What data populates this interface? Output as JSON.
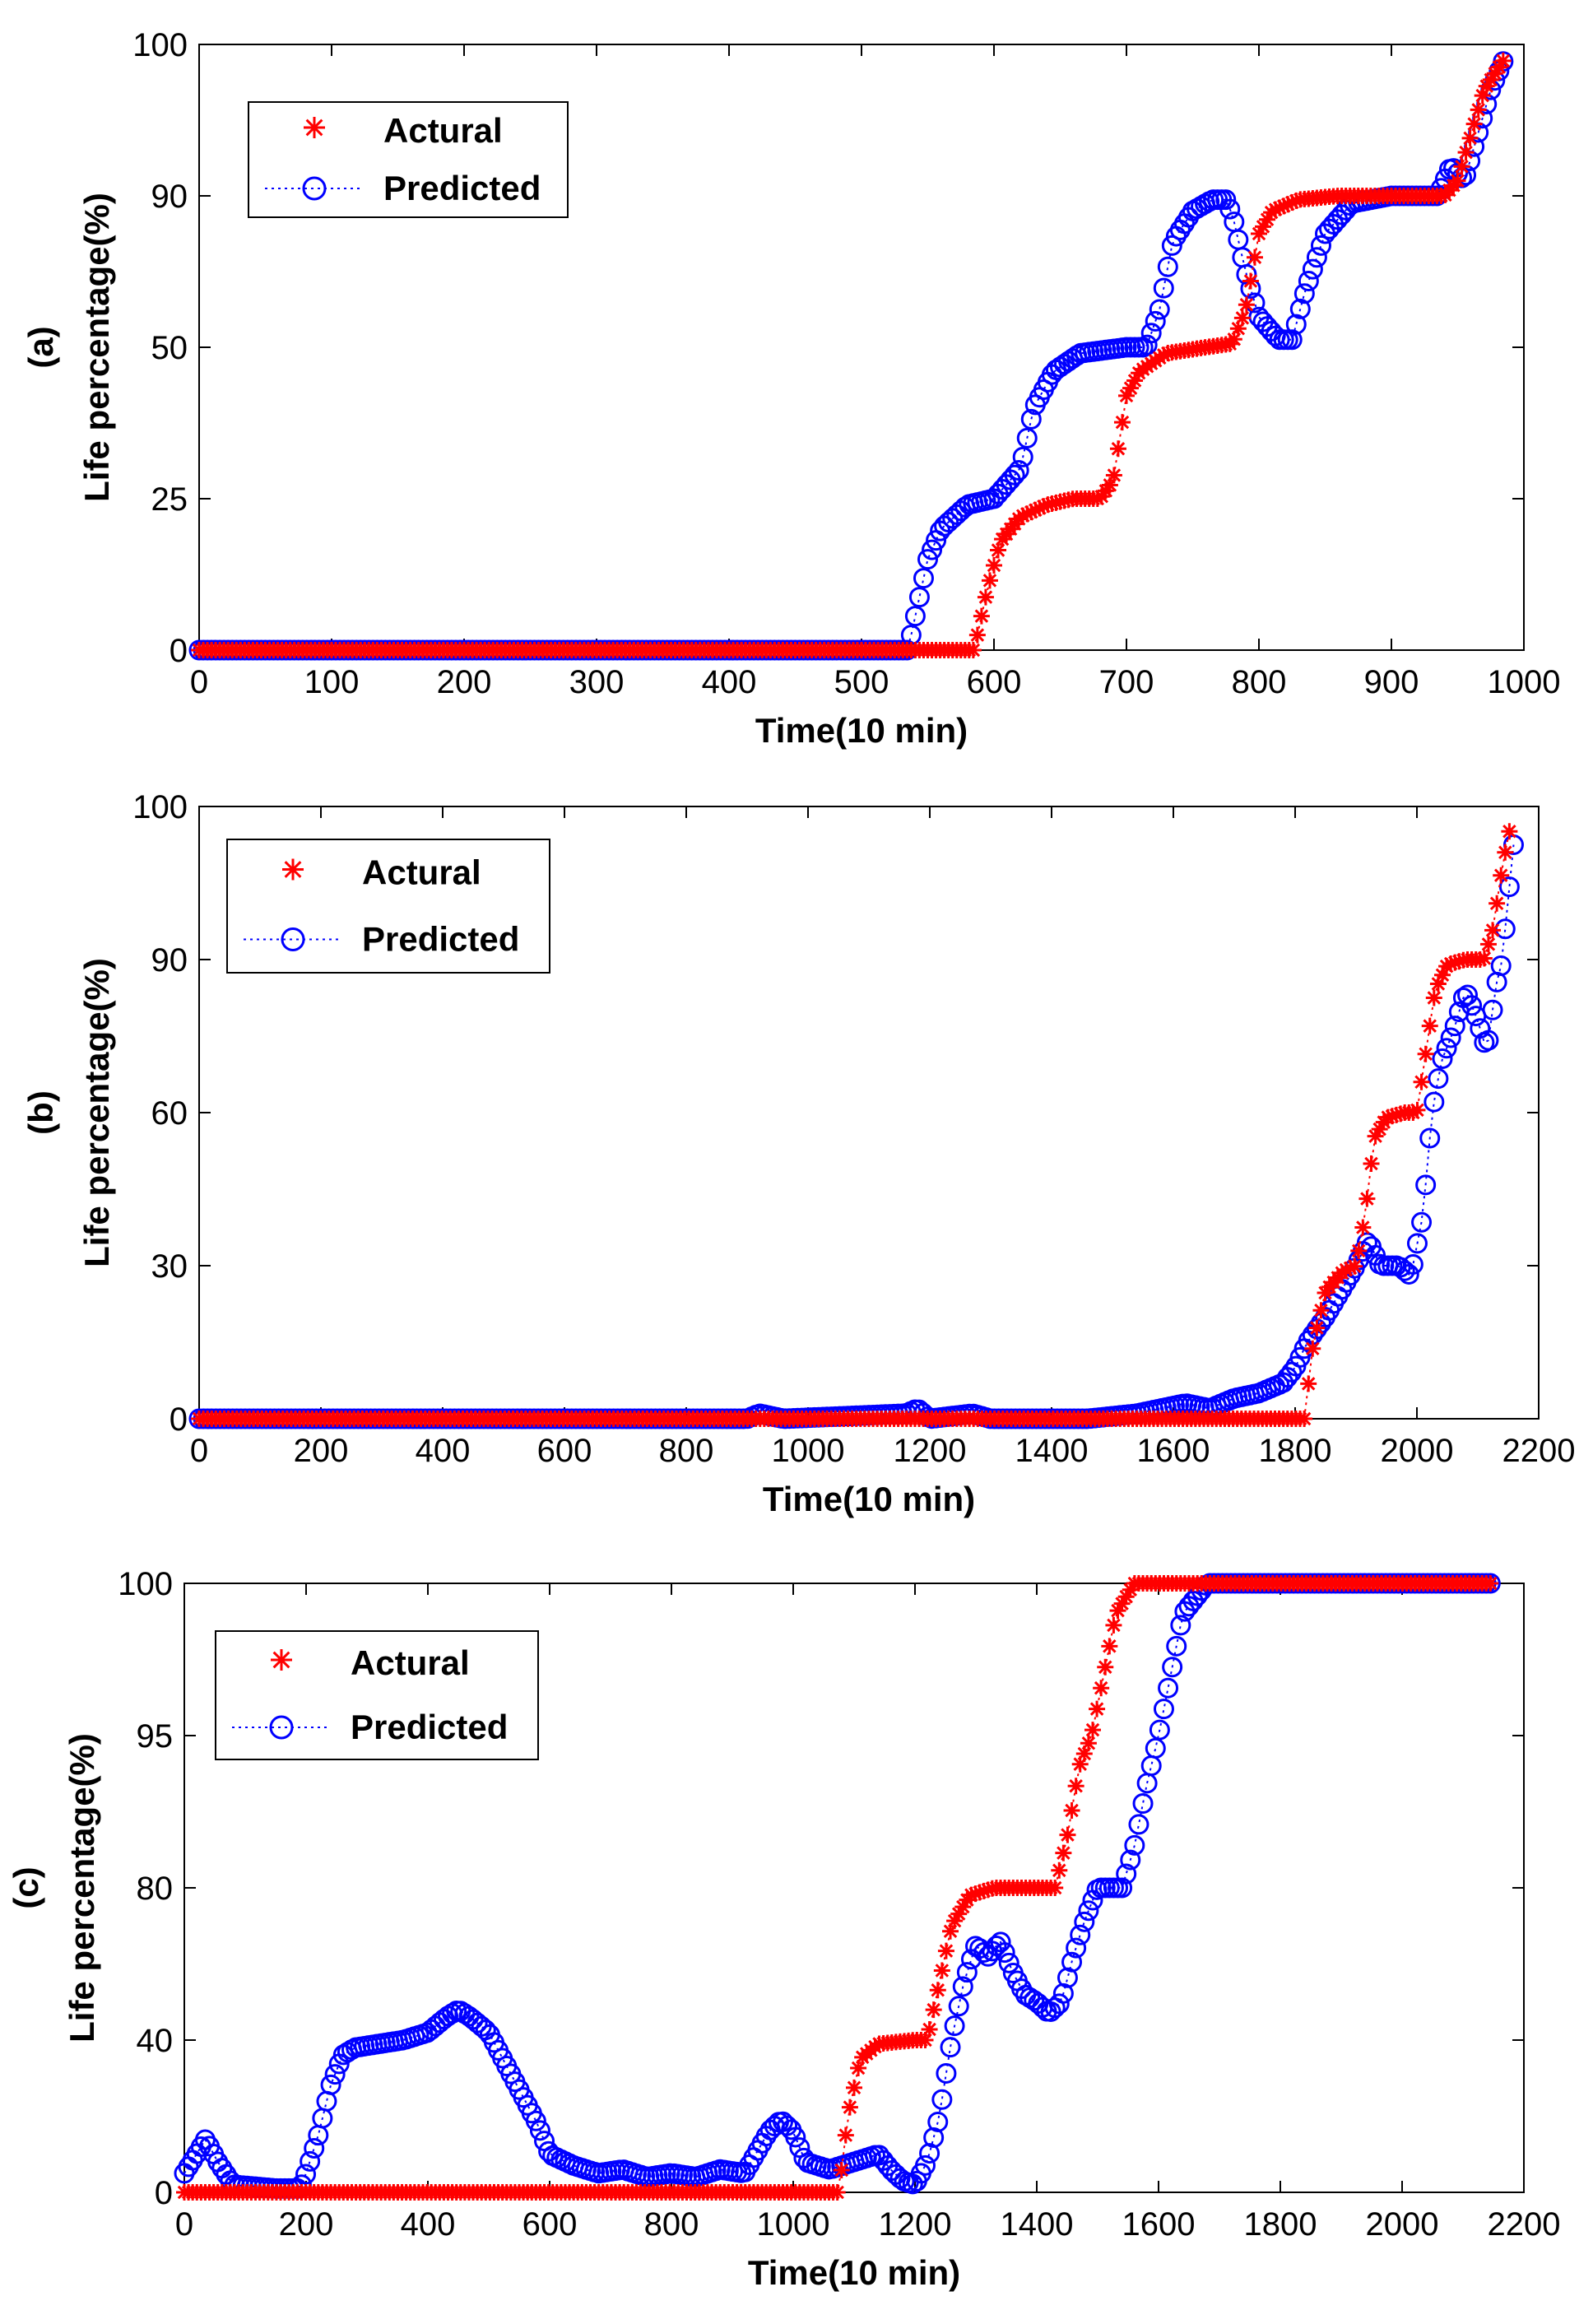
{
  "chart_data": [
    {
      "type": "scatter",
      "panel_label": "(a)",
      "xlabel": "Time(10 min)",
      "ylabel": "Life percentage(%)",
      "xlim": [
        0,
        1000
      ],
      "xticks": [
        0,
        100,
        200,
        300,
        400,
        500,
        600,
        700,
        800,
        900,
        1000
      ],
      "ytick_labels": [
        "0",
        "25",
        "50",
        "90",
        "100"
      ],
      "ytick_values": [
        0,
        25,
        50,
        90,
        100
      ],
      "legend": {
        "position": "top-left",
        "entries": [
          "Actural",
          "Predicted"
        ]
      },
      "series": [
        {
          "name": "Actural",
          "marker": "asterisk",
          "color": "#ff0000",
          "points": [
            [
              0,
              0
            ],
            [
              570,
              0
            ],
            [
              585,
              0
            ],
            [
              595,
              10
            ],
            [
              605,
              18
            ],
            [
              620,
              22
            ],
            [
              640,
              24
            ],
            [
              660,
              25
            ],
            [
              680,
              25
            ],
            [
              690,
              28
            ],
            [
              700,
              42
            ],
            [
              710,
              46
            ],
            [
              730,
              49
            ],
            [
              760,
              50
            ],
            [
              780,
              51
            ],
            [
              790,
              60
            ],
            [
              800,
              80
            ],
            [
              810,
              86
            ],
            [
              830,
              89
            ],
            [
              860,
              90
            ],
            [
              900,
              90
            ],
            [
              940,
              90
            ],
            [
              950,
              91
            ],
            [
              960,
              94
            ],
            [
              970,
              97
            ],
            [
              985,
              99
            ]
          ]
        },
        {
          "name": "Predicted",
          "marker": "circle",
          "color": "#0000ff",
          "points": [
            [
              0,
              0
            ],
            [
              520,
              0
            ],
            [
              535,
              0
            ],
            [
              540,
              5
            ],
            [
              550,
              15
            ],
            [
              560,
              20
            ],
            [
              580,
              24
            ],
            [
              600,
              25
            ],
            [
              620,
              30
            ],
            [
              630,
              40
            ],
            [
              645,
              46
            ],
            [
              665,
              49
            ],
            [
              700,
              50
            ],
            [
              715,
              50
            ],
            [
              725,
              60
            ],
            [
              735,
              78
            ],
            [
              750,
              86
            ],
            [
              765,
              89
            ],
            [
              775,
              89
            ],
            [
              780,
              85
            ],
            [
              790,
              70
            ],
            [
              800,
              58
            ],
            [
              815,
              52
            ],
            [
              825,
              52
            ],
            [
              835,
              65
            ],
            [
              850,
              80
            ],
            [
              870,
              88
            ],
            [
              900,
              90
            ],
            [
              935,
              90
            ],
            [
              945,
              92
            ],
            [
              955,
              91
            ],
            [
              965,
              94
            ],
            [
              975,
              97
            ],
            [
              985,
              99
            ]
          ]
        }
      ]
    },
    {
      "type": "scatter",
      "panel_label": "(b)",
      "xlabel": "Time(10 min)",
      "ylabel": "Life percentage(%)",
      "xlim": [
        0,
        2200
      ],
      "xticks": [
        0,
        200,
        400,
        600,
        800,
        1000,
        1200,
        1400,
        1600,
        1800,
        2000,
        2200
      ],
      "ytick_labels": [
        "0",
        "30",
        "60",
        "90",
        "100"
      ],
      "ytick_values": [
        0,
        30,
        60,
        90,
        100
      ],
      "legend": {
        "position": "top-left",
        "entries": [
          "Actural",
          "Predicted"
        ]
      },
      "series": [
        {
          "name": "Actural",
          "marker": "asterisk",
          "color": "#ff0000",
          "points": [
            [
              0,
              0
            ],
            [
              1780,
              0
            ],
            [
              1815,
              0
            ],
            [
              1830,
              15
            ],
            [
              1850,
              25
            ],
            [
              1880,
              29
            ],
            [
              1900,
              30
            ],
            [
              1915,
              40
            ],
            [
              1930,
              55
            ],
            [
              1950,
              59
            ],
            [
              1980,
              60
            ],
            [
              2000,
              60
            ],
            [
              2015,
              72
            ],
            [
              2030,
              84
            ],
            [
              2050,
              89
            ],
            [
              2080,
              90
            ],
            [
              2110,
              90
            ],
            [
              2125,
              92
            ],
            [
              2140,
              96
            ],
            [
              2155,
              99
            ]
          ]
        },
        {
          "name": "Predicted",
          "marker": "circle",
          "color": "#0000ff",
          "points": [
            [
              0,
              0
            ],
            [
              900,
              0
            ],
            [
              920,
              1
            ],
            [
              960,
              0
            ],
            [
              1160,
              1
            ],
            [
              1180,
              2
            ],
            [
              1200,
              0
            ],
            [
              1270,
              1
            ],
            [
              1300,
              0
            ],
            [
              1460,
              0
            ],
            [
              1540,
              1
            ],
            [
              1580,
              2
            ],
            [
              1620,
              3
            ],
            [
              1660,
              2
            ],
            [
              1700,
              4
            ],
            [
              1740,
              5
            ],
            [
              1780,
              7
            ],
            [
              1800,
              10
            ],
            [
              1820,
              15
            ],
            [
              1850,
              20
            ],
            [
              1880,
              26
            ],
            [
              1900,
              30
            ],
            [
              1920,
              35
            ],
            [
              1940,
              30
            ],
            [
              1970,
              30
            ],
            [
              1990,
              28
            ],
            [
              2010,
              40
            ],
            [
              2025,
              60
            ],
            [
              2040,
              70
            ],
            [
              2060,
              76
            ],
            [
              2080,
              84
            ],
            [
              2100,
              78
            ],
            [
              2115,
              72
            ],
            [
              2130,
              85
            ],
            [
              2145,
              92
            ],
            [
              2160,
              98
            ]
          ]
        }
      ]
    },
    {
      "type": "scatter",
      "panel_label": "(c)",
      "xlabel": "Time(10 min)",
      "ylabel": "Life percentage(%)",
      "xlim": [
        0,
        2200
      ],
      "xticks": [
        0,
        200,
        400,
        600,
        800,
        1000,
        1200,
        1400,
        1600,
        1800,
        2000,
        2200
      ],
      "ytick_labels": [
        "0",
        "40",
        "80",
        "95",
        "100"
      ],
      "ytick_values": [
        0,
        40,
        80,
        95,
        100
      ],
      "legend": {
        "position": "top-left",
        "entries": [
          "Actural",
          "Predicted"
        ]
      },
      "series": [
        {
          "name": "Actural",
          "marker": "asterisk",
          "color": "#ff0000",
          "points": [
            [
              0,
              0
            ],
            [
              1050,
              0
            ],
            [
              1075,
              0
            ],
            [
              1090,
              20
            ],
            [
              1110,
              35
            ],
            [
              1140,
              39
            ],
            [
              1200,
              40
            ],
            [
              1220,
              40
            ],
            [
              1240,
              55
            ],
            [
              1260,
              70
            ],
            [
              1290,
              78
            ],
            [
              1330,
              80
            ],
            [
              1430,
              80
            ],
            [
              1450,
              85
            ],
            [
              1470,
              92
            ],
            [
              1490,
              95
            ],
            [
              1510,
              97
            ],
            [
              1530,
              99
            ],
            [
              1560,
              100
            ],
            [
              2150,
              100
            ]
          ]
        },
        {
          "name": "Predicted",
          "marker": "circle",
          "color": "#0000ff",
          "points": [
            [
              0,
              5
            ],
            [
              20,
              10
            ],
            [
              35,
              14
            ],
            [
              55,
              8
            ],
            [
              80,
              2
            ],
            [
              150,
              1
            ],
            [
              190,
              1
            ],
            [
              200,
              5
            ],
            [
              220,
              15
            ],
            [
              240,
              28
            ],
            [
              260,
              36
            ],
            [
              280,
              38
            ],
            [
              320,
              39
            ],
            [
              360,
              40
            ],
            [
              400,
              42
            ],
            [
              430,
              46
            ],
            [
              450,
              48
            ],
            [
              470,
              46
            ],
            [
              500,
              42
            ],
            [
              520,
              36
            ],
            [
              540,
              30
            ],
            [
              560,
              24
            ],
            [
              580,
              18
            ],
            [
              600,
              10
            ],
            [
              640,
              7
            ],
            [
              680,
              5
            ],
            [
              720,
              6
            ],
            [
              760,
              4
            ],
            [
              800,
              5
            ],
            [
              840,
              4
            ],
            [
              880,
              6
            ],
            [
              920,
              5
            ],
            [
              960,
              16
            ],
            [
              980,
              19
            ],
            [
              1000,
              16
            ],
            [
              1020,
              8
            ],
            [
              1060,
              6
            ],
            [
              1100,
              8
            ],
            [
              1140,
              10
            ],
            [
              1160,
              6
            ],
            [
              1180,
              3
            ],
            [
              1200,
              2
            ],
            [
              1220,
              8
            ],
            [
              1240,
              20
            ],
            [
              1260,
              40
            ],
            [
              1280,
              55
            ],
            [
              1300,
              65
            ],
            [
              1320,
              62
            ],
            [
              1340,
              66
            ],
            [
              1360,
              58
            ],
            [
              1380,
              52
            ],
            [
              1400,
              50
            ],
            [
              1420,
              47
            ],
            [
              1440,
              50
            ],
            [
              1460,
              62
            ],
            [
              1480,
              72
            ],
            [
              1500,
              80
            ],
            [
              1540,
              80
            ],
            [
              1560,
              84
            ],
            [
              1580,
              90
            ],
            [
              1600,
              95
            ],
            [
              1620,
              97
            ],
            [
              1640,
              99
            ],
            [
              1680,
              100
            ],
            [
              2150,
              100
            ]
          ]
        }
      ]
    }
  ]
}
